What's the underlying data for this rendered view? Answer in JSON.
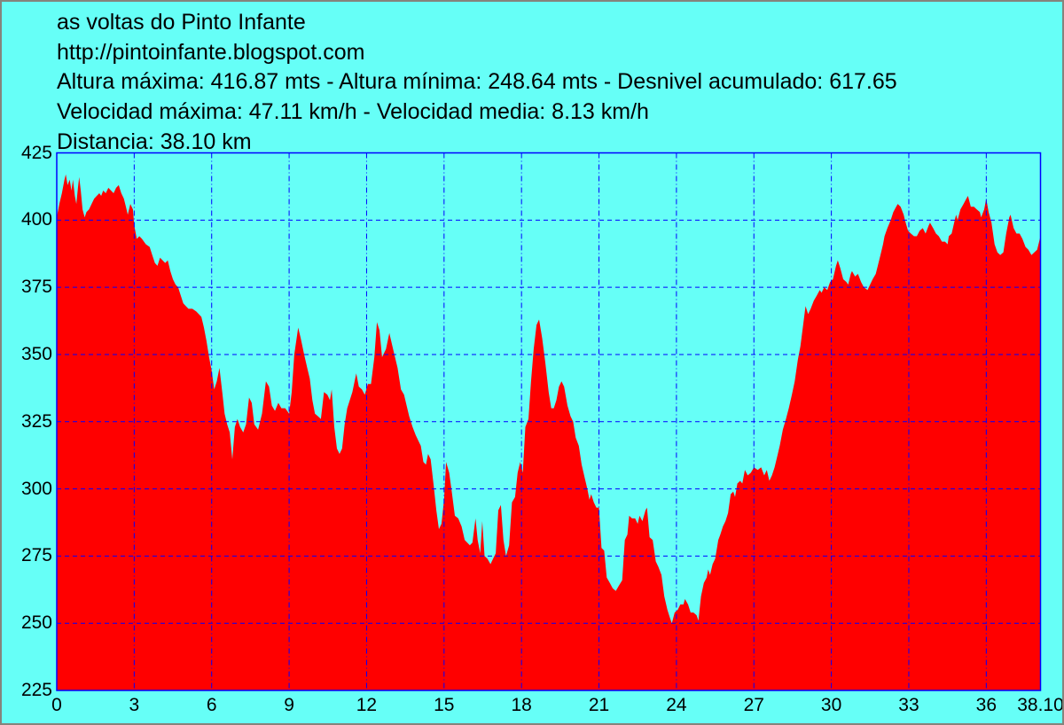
{
  "header": {
    "title": "as voltas do Pinto Infante",
    "url": "http://pintoinfante.blogspot.com",
    "stats_line1": "Altura máxima: 416.87 mts - Altura mínima: 248.64 mts - Desnivel acumulado: 617.65",
    "stats_line2": "Velocidad máxima: 47.11 km/h - Velocidad media: 8.13 km/h",
    "stats_line3": "Distancia: 38.10 km"
  },
  "colors": {
    "background": "#66FFF7",
    "area_fill": "#FF0000",
    "grid_and_frame": "#0000FF",
    "text": "#000000",
    "outer_frame": "#85847C"
  },
  "chart_data": {
    "type": "area",
    "title": "as voltas do Pinto Infante",
    "xlabel": "",
    "ylabel": "",
    "xlim": [
      0,
      38.1
    ],
    "ylim": [
      225,
      425
    ],
    "grid": true,
    "x_ticks": [
      0,
      3,
      6,
      9,
      12,
      15,
      18,
      21,
      24,
      27,
      30,
      33,
      36,
      38.1
    ],
    "x_tick_labels": [
      "0",
      "3",
      "6",
      "9",
      "12",
      "15",
      "18",
      "21",
      "24",
      "27",
      "30",
      "33",
      "36",
      "38.10"
    ],
    "y_ticks": [
      225,
      250,
      275,
      300,
      325,
      350,
      375,
      400,
      425
    ],
    "y_tick_labels": [
      "225",
      "250",
      "275",
      "300",
      "325",
      "350",
      "375",
      "400",
      "425"
    ],
    "stats": {
      "altura_maxima_mts": 416.87,
      "altura_minima_mts": 248.64,
      "desnivel_acumulado_mts": 617.65,
      "velocidad_maxima_kmh": 47.11,
      "velocidad_media_kmh": 8.13,
      "distancia_km": 38.1
    },
    "profile": [
      [
        0,
        401
      ],
      [
        0.1,
        406
      ],
      [
        0.2,
        410
      ],
      [
        0.3,
        415
      ],
      [
        0.35,
        417
      ],
      [
        0.42,
        413
      ],
      [
        0.5,
        415
      ],
      [
        0.57,
        411
      ],
      [
        0.63,
        415
      ],
      [
        0.7,
        409
      ],
      [
        0.76,
        406
      ],
      [
        0.82,
        412
      ],
      [
        0.87,
        416
      ],
      [
        0.93,
        411
      ],
      [
        1.0,
        404
      ],
      [
        1.08,
        401
      ],
      [
        1.15,
        403
      ],
      [
        1.25,
        404
      ],
      [
        1.35,
        406
      ],
      [
        1.45,
        408
      ],
      [
        1.55,
        409
      ],
      [
        1.65,
        410
      ],
      [
        1.72,
        409
      ],
      [
        1.8,
        411
      ],
      [
        1.9,
        410
      ],
      [
        2.0,
        412
      ],
      [
        2.1,
        411
      ],
      [
        2.2,
        410
      ],
      [
        2.3,
        412
      ],
      [
        2.4,
        413
      ],
      [
        2.5,
        410
      ],
      [
        2.6,
        408
      ],
      [
        2.68,
        405
      ],
      [
        2.75,
        402
      ],
      [
        2.85,
        406
      ],
      [
        2.95,
        404
      ],
      [
        3.0,
        398
      ],
      [
        3.1,
        393
      ],
      [
        3.2,
        394
      ],
      [
        3.3,
        393
      ],
      [
        3.45,
        391
      ],
      [
        3.6,
        390
      ],
      [
        3.7,
        387
      ],
      [
        3.8,
        384
      ],
      [
        3.9,
        383
      ],
      [
        4.0,
        386
      ],
      [
        4.1,
        385
      ],
      [
        4.2,
        384
      ],
      [
        4.3,
        385
      ],
      [
        4.4,
        381
      ],
      [
        4.5,
        378
      ],
      [
        4.6,
        376
      ],
      [
        4.7,
        375
      ],
      [
        4.8,
        372
      ],
      [
        4.9,
        369
      ],
      [
        5.0,
        368
      ],
      [
        5.1,
        367
      ],
      [
        5.25,
        367
      ],
      [
        5.4,
        366
      ],
      [
        5.5,
        365
      ],
      [
        5.6,
        364
      ],
      [
        5.7,
        360
      ],
      [
        5.8,
        355
      ],
      [
        5.9,
        349
      ],
      [
        6.0,
        344
      ],
      [
        6.1,
        337
      ],
      [
        6.2,
        340
      ],
      [
        6.3,
        345
      ],
      [
        6.42,
        335
      ],
      [
        6.5,
        328
      ],
      [
        6.6,
        324
      ],
      [
        6.7,
        321
      ],
      [
        6.8,
        311
      ],
      [
        6.9,
        323
      ],
      [
        7.0,
        326
      ],
      [
        7.1,
        323
      ],
      [
        7.22,
        321
      ],
      [
        7.33,
        324
      ],
      [
        7.45,
        334
      ],
      [
        7.55,
        332
      ],
      [
        7.65,
        324
      ],
      [
        7.8,
        322
      ],
      [
        7.95,
        328
      ],
      [
        8.1,
        340
      ],
      [
        8.22,
        338
      ],
      [
        8.33,
        331
      ],
      [
        8.45,
        329
      ],
      [
        8.58,
        332
      ],
      [
        8.7,
        330
      ],
      [
        8.85,
        330
      ],
      [
        9.0,
        328
      ],
      [
        9.1,
        336
      ],
      [
        9.2,
        350
      ],
      [
        9.35,
        360
      ],
      [
        9.45,
        356
      ],
      [
        9.58,
        350
      ],
      [
        9.7,
        345
      ],
      [
        9.8,
        341
      ],
      [
        9.9,
        333
      ],
      [
        10.0,
        328
      ],
      [
        10.12,
        327
      ],
      [
        10.23,
        326
      ],
      [
        10.35,
        336
      ],
      [
        10.48,
        335
      ],
      [
        10.58,
        333
      ],
      [
        10.65,
        337
      ],
      [
        10.75,
        323
      ],
      [
        10.85,
        315
      ],
      [
        10.95,
        313
      ],
      [
        11.05,
        315
      ],
      [
        11.15,
        324
      ],
      [
        11.25,
        330
      ],
      [
        11.35,
        333
      ],
      [
        11.45,
        336
      ],
      [
        11.6,
        343
      ],
      [
        11.7,
        338
      ],
      [
        11.82,
        337
      ],
      [
        11.93,
        335
      ],
      [
        12.05,
        339
      ],
      [
        12.17,
        339
      ],
      [
        12.3,
        349
      ],
      [
        12.4,
        362
      ],
      [
        12.5,
        359
      ],
      [
        12.6,
        349
      ],
      [
        12.75,
        352
      ],
      [
        12.88,
        358
      ],
      [
        13.0,
        353
      ],
      [
        13.1,
        349
      ],
      [
        13.2,
        345
      ],
      [
        13.33,
        337
      ],
      [
        13.45,
        335
      ],
      [
        13.55,
        331
      ],
      [
        13.65,
        327
      ],
      [
        13.78,
        323
      ],
      [
        13.9,
        320
      ],
      [
        14.0,
        318
      ],
      [
        14.1,
        316
      ],
      [
        14.2,
        310
      ],
      [
        14.3,
        309
      ],
      [
        14.38,
        313
      ],
      [
        14.48,
        311
      ],
      [
        14.6,
        301
      ],
      [
        14.7,
        292
      ],
      [
        14.8,
        285
      ],
      [
        14.9,
        287
      ],
      [
        15.0,
        296
      ],
      [
        15.08,
        310
      ],
      [
        15.2,
        306
      ],
      [
        15.3,
        299
      ],
      [
        15.42,
        290
      ],
      [
        15.55,
        289
      ],
      [
        15.68,
        286
      ],
      [
        15.8,
        281
      ],
      [
        15.9,
        280
      ],
      [
        16.0,
        279
      ],
      [
        16.1,
        280
      ],
      [
        16.22,
        289
      ],
      [
        16.3,
        281
      ],
      [
        16.4,
        276
      ],
      [
        16.48,
        288
      ],
      [
        16.57,
        275
      ],
      [
        16.68,
        274
      ],
      [
        16.8,
        272
      ],
      [
        16.9,
        274
      ],
      [
        17.0,
        276
      ],
      [
        17.1,
        292
      ],
      [
        17.2,
        294
      ],
      [
        17.3,
        281
      ],
      [
        17.4,
        275
      ],
      [
        17.52,
        279
      ],
      [
        17.63,
        295
      ],
      [
        17.75,
        297
      ],
      [
        17.85,
        306
      ],
      [
        17.95,
        310
      ],
      [
        18.05,
        306
      ],
      [
        18.15,
        323
      ],
      [
        18.27,
        326
      ],
      [
        18.37,
        340
      ],
      [
        18.47,
        352
      ],
      [
        18.58,
        361
      ],
      [
        18.68,
        363
      ],
      [
        18.8,
        356
      ],
      [
        18.92,
        347
      ],
      [
        19.05,
        336
      ],
      [
        19.15,
        330
      ],
      [
        19.25,
        330
      ],
      [
        19.35,
        333
      ],
      [
        19.45,
        338
      ],
      [
        19.55,
        340
      ],
      [
        19.65,
        338
      ],
      [
        19.78,
        331
      ],
      [
        19.9,
        327
      ],
      [
        20.0,
        325
      ],
      [
        20.1,
        319
      ],
      [
        20.22,
        316
      ],
      [
        20.33,
        309
      ],
      [
        20.45,
        304
      ],
      [
        20.55,
        300
      ],
      [
        20.63,
        296
      ],
      [
        20.7,
        298
      ],
      [
        20.8,
        295
      ],
      [
        20.9,
        293
      ],
      [
        21.0,
        293
      ],
      [
        21.1,
        278
      ],
      [
        21.2,
        277
      ],
      [
        21.3,
        267
      ],
      [
        21.42,
        265
      ],
      [
        21.53,
        263
      ],
      [
        21.65,
        262
      ],
      [
        21.77,
        264
      ],
      [
        21.9,
        266
      ],
      [
        22.0,
        281
      ],
      [
        22.1,
        283
      ],
      [
        22.17,
        290
      ],
      [
        22.28,
        289
      ],
      [
        22.4,
        289
      ],
      [
        22.5,
        287
      ],
      [
        22.57,
        290
      ],
      [
        22.68,
        288
      ],
      [
        22.8,
        292
      ],
      [
        22.86,
        293
      ],
      [
        22.96,
        282
      ],
      [
        23.08,
        281
      ],
      [
        23.2,
        273
      ],
      [
        23.3,
        271
      ],
      [
        23.42,
        268
      ],
      [
        23.53,
        260
      ],
      [
        23.65,
        255
      ],
      [
        23.75,
        252
      ],
      [
        23.82,
        250
      ],
      [
        23.93,
        254
      ],
      [
        24.05,
        255
      ],
      [
        24.15,
        257
      ],
      [
        24.27,
        257
      ],
      [
        24.33,
        259
      ],
      [
        24.45,
        257
      ],
      [
        24.55,
        254
      ],
      [
        24.66,
        254
      ],
      [
        24.78,
        253
      ],
      [
        24.85,
        251
      ],
      [
        24.95,
        260
      ],
      [
        25.06,
        265
      ],
      [
        25.17,
        267
      ],
      [
        25.23,
        270
      ],
      [
        25.3,
        268
      ],
      [
        25.4,
        272
      ],
      [
        25.5,
        274
      ],
      [
        25.62,
        281
      ],
      [
        25.7,
        283
      ],
      [
        25.8,
        286
      ],
      [
        25.9,
        288
      ],
      [
        26.0,
        291
      ],
      [
        26.1,
        298
      ],
      [
        26.2,
        299
      ],
      [
        26.27,
        297
      ],
      [
        26.36,
        302
      ],
      [
        26.47,
        303
      ],
      [
        26.55,
        302
      ],
      [
        26.65,
        307
      ],
      [
        26.76,
        305
      ],
      [
        26.88,
        306
      ],
      [
        27.0,
        308
      ],
      [
        27.15,
        307
      ],
      [
        27.28,
        308
      ],
      [
        27.4,
        305
      ],
      [
        27.5,
        307
      ],
      [
        27.6,
        303
      ],
      [
        27.7,
        305
      ],
      [
        27.8,
        308
      ],
      [
        27.9,
        312
      ],
      [
        28.0,
        316
      ],
      [
        28.12,
        322
      ],
      [
        28.24,
        326
      ],
      [
        28.35,
        330
      ],
      [
        28.47,
        335
      ],
      [
        28.58,
        340
      ],
      [
        28.7,
        348
      ],
      [
        28.8,
        353
      ],
      [
        28.92,
        362
      ],
      [
        29.0,
        368
      ],
      [
        29.1,
        365
      ],
      [
        29.2,
        367
      ],
      [
        29.32,
        370
      ],
      [
        29.44,
        372
      ],
      [
        29.55,
        374
      ],
      [
        29.62,
        373
      ],
      [
        29.72,
        375
      ],
      [
        29.84,
        374
      ],
      [
        29.95,
        377
      ],
      [
        30.06,
        378
      ],
      [
        30.18,
        383
      ],
      [
        30.25,
        385
      ],
      [
        30.35,
        382
      ],
      [
        30.46,
        378
      ],
      [
        30.58,
        377
      ],
      [
        30.65,
        376
      ],
      [
        30.75,
        380
      ],
      [
        30.8,
        381
      ],
      [
        30.92,
        379
      ],
      [
        31.03,
        380
      ],
      [
        31.15,
        377
      ],
      [
        31.26,
        375
      ],
      [
        31.4,
        374
      ],
      [
        31.5,
        376
      ],
      [
        31.6,
        378
      ],
      [
        31.72,
        380
      ],
      [
        31.8,
        383
      ],
      [
        31.9,
        387
      ],
      [
        32.0,
        391
      ],
      [
        32.06,
        394
      ],
      [
        32.17,
        397
      ],
      [
        32.3,
        400
      ],
      [
        32.4,
        403
      ],
      [
        32.51,
        405
      ],
      [
        32.57,
        406
      ],
      [
        32.68,
        405
      ],
      [
        32.8,
        402
      ],
      [
        32.85,
        400
      ],
      [
        32.97,
        396
      ],
      [
        33.08,
        395
      ],
      [
        33.2,
        394
      ],
      [
        33.31,
        394
      ],
      [
        33.42,
        396
      ],
      [
        33.54,
        397
      ],
      [
        33.65,
        395
      ],
      [
        33.77,
        398
      ],
      [
        33.82,
        399
      ],
      [
        33.94,
        397
      ],
      [
        34.05,
        395
      ],
      [
        34.16,
        394
      ],
      [
        34.28,
        392
      ],
      [
        34.4,
        392
      ],
      [
        34.5,
        391
      ],
      [
        34.55,
        394
      ],
      [
        34.66,
        395
      ],
      [
        34.78,
        400
      ],
      [
        34.83,
        402
      ],
      [
        34.89,
        400
      ],
      [
        35.0,
        404
      ],
      [
        35.12,
        406
      ],
      [
        35.23,
        408
      ],
      [
        35.29,
        409
      ],
      [
        35.4,
        405
      ],
      [
        35.52,
        405
      ],
      [
        35.63,
        404
      ],
      [
        35.75,
        403
      ],
      [
        35.8,
        401
      ],
      [
        35.92,
        404
      ],
      [
        36.0,
        408
      ],
      [
        36.09,
        403
      ],
      [
        36.2,
        399
      ],
      [
        36.32,
        391
      ],
      [
        36.43,
        388
      ],
      [
        36.54,
        387
      ],
      [
        36.66,
        388
      ],
      [
        36.77,
        395
      ],
      [
        36.89,
        401
      ],
      [
        36.94,
        402
      ],
      [
        37.06,
        397
      ],
      [
        37.17,
        395
      ],
      [
        37.29,
        395
      ],
      [
        37.4,
        393
      ],
      [
        37.52,
        390
      ],
      [
        37.63,
        389
      ],
      [
        37.75,
        387
      ],
      [
        37.86,
        388
      ],
      [
        37.97,
        389
      ],
      [
        38.1,
        394
      ]
    ]
  }
}
